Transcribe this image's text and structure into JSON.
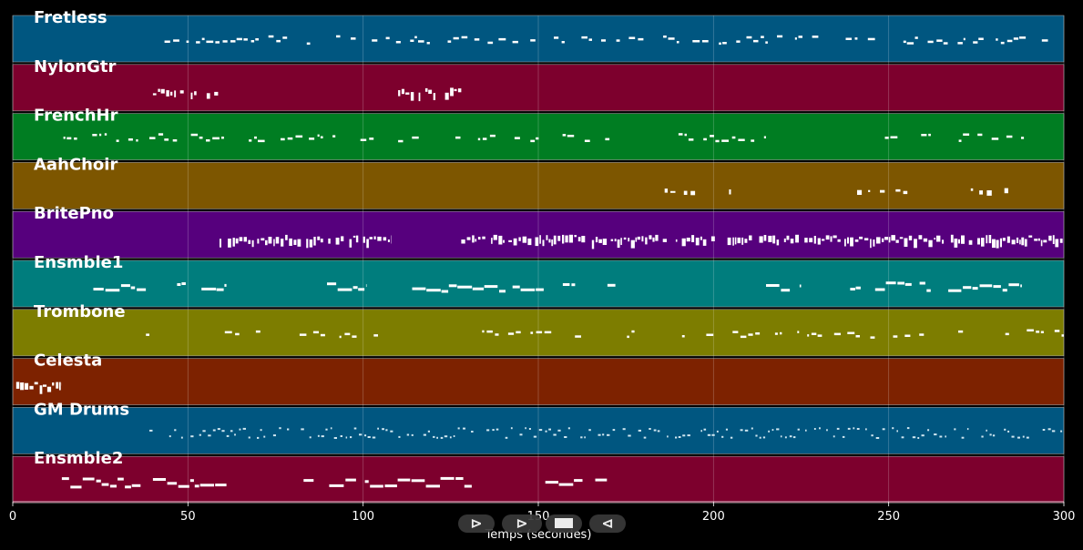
{
  "chart_data": {
    "type": "piano-roll",
    "title": "",
    "xlabel": "Temps (secondes)",
    "ylabel": "",
    "xlim": [
      0,
      300
    ],
    "xticks": [
      0,
      50,
      100,
      150,
      200,
      250,
      300
    ],
    "grid": true,
    "tracks": [
      {
        "name": "Fretless",
        "color": "#005680",
        "segments": [
          [
            39,
            300
          ]
        ],
        "density": 0.62,
        "style": "dashes"
      },
      {
        "name": "NylonGtr",
        "color": "#7d002d",
        "segments": [
          [
            40,
            59
          ],
          [
            110,
            128
          ]
        ],
        "density": 0.8,
        "style": "dense"
      },
      {
        "name": "FrenchHr",
        "color": "#007d22",
        "segments": [
          [
            13,
            38
          ],
          [
            39,
            103
          ],
          [
            110,
            172
          ],
          [
            190,
            215
          ],
          [
            247,
            262
          ],
          [
            270,
            290
          ]
        ],
        "density": 0.55,
        "style": "dashes"
      },
      {
        "name": "AahChoir",
        "color": "#7d5600",
        "segments": [
          [
            184,
            210
          ],
          [
            241,
            257
          ],
          [
            268,
            286
          ]
        ],
        "density": 0.3,
        "style": "sparse"
      },
      {
        "name": "BritePno",
        "color": "#56007d",
        "segments": [
          [
            59,
            108
          ],
          [
            128,
            300
          ]
        ],
        "density": 0.85,
        "style": "dense"
      },
      {
        "name": "Ensmble1",
        "color": "#007d7d",
        "segments": [
          [
            23,
            38
          ],
          [
            40,
            61
          ],
          [
            88,
            101
          ],
          [
            114,
            153
          ],
          [
            157,
            172
          ],
          [
            215,
            225
          ],
          [
            239,
            262
          ],
          [
            267,
            288
          ]
        ],
        "density": 0.9,
        "style": "long"
      },
      {
        "name": "Trombone",
        "color": "#7d7d00",
        "segments": [
          [
            38,
            39
          ],
          [
            59,
            109
          ],
          [
            129,
            300
          ]
        ],
        "density": 0.45,
        "style": "dashes"
      },
      {
        "name": "Celesta",
        "color": "#7d2200",
        "segments": [
          [
            1,
            14
          ]
        ],
        "density": 1.0,
        "style": "dense"
      },
      {
        "name": "GM Drums",
        "color": "#005680",
        "segments": [
          [
            39,
            300
          ]
        ],
        "density": 0.75,
        "style": "drums"
      },
      {
        "name": "Ensmble2",
        "color": "#7d002d",
        "segments": [
          [
            14,
            38
          ],
          [
            40,
            61
          ],
          [
            83,
            131
          ],
          [
            152,
            172
          ]
        ],
        "density": 0.85,
        "style": "long"
      }
    ]
  },
  "controls": {
    "play_label": "⊳",
    "forward_label": "⊳",
    "rewind_label": "⊲",
    "stop_icon": "stop-square-icon"
  }
}
